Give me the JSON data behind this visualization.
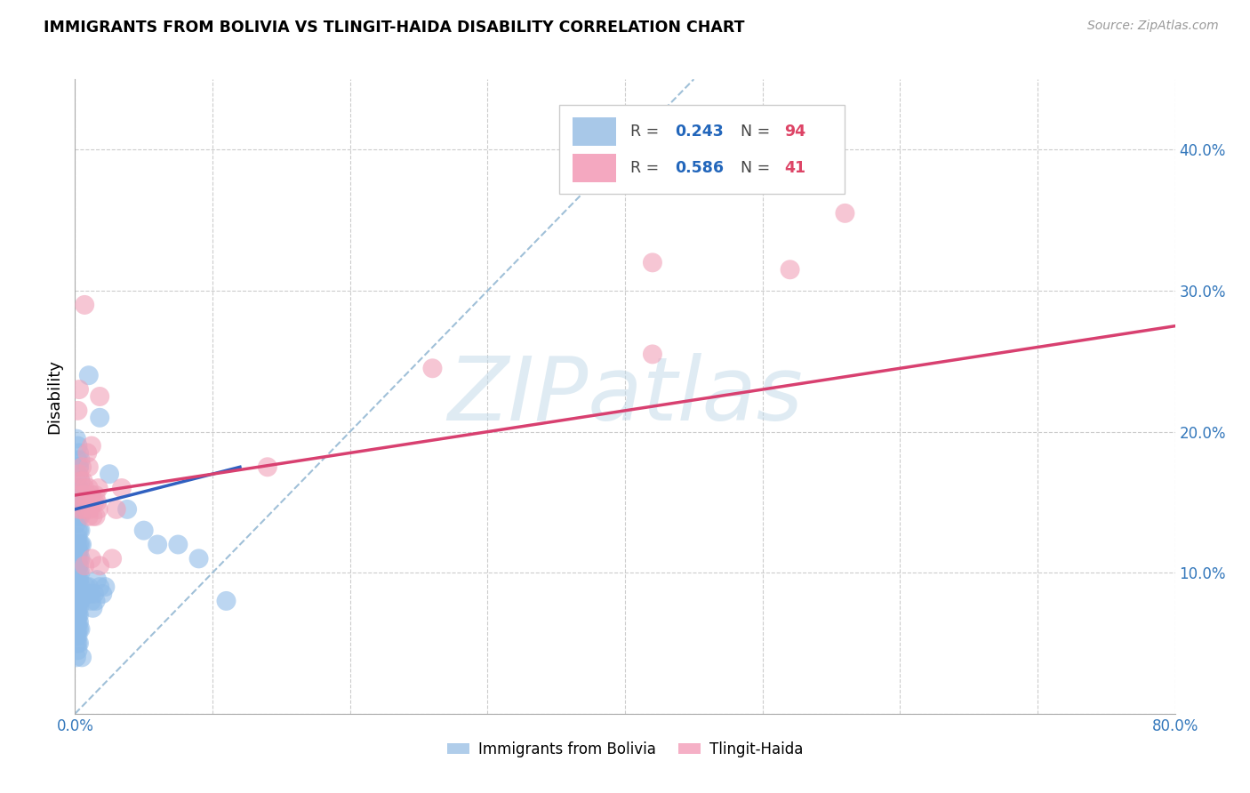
{
  "title": "IMMIGRANTS FROM BOLIVIA VS TLINGIT-HAIDA DISABILITY CORRELATION CHART",
  "source": "Source: ZipAtlas.com",
  "ylabel": "Disability",
  "xlim": [
    0.0,
    0.8
  ],
  "ylim": [
    0.0,
    0.45
  ],
  "xticks": [
    0.0,
    0.1,
    0.2,
    0.3,
    0.4,
    0.5,
    0.6,
    0.7,
    0.8
  ],
  "xticklabels": [
    "0.0%",
    "",
    "",
    "",
    "",
    "",
    "",
    "",
    "80.0%"
  ],
  "yticks": [
    0.0,
    0.1,
    0.2,
    0.3,
    0.4
  ],
  "yticklabels": [
    "",
    "10.0%",
    "20.0%",
    "30.0%",
    "40.0%"
  ],
  "watermark": "ZIPatlas",
  "bolivia_color": "#90bce8",
  "tlingit_color": "#f0a0b8",
  "bolivia_line_color": "#3060c0",
  "tlingit_line_color": "#d84070",
  "diagonal_color": "#a0c0d8",
  "background": "#ffffff",
  "grid_color": "#cccccc",
  "bolivia_points": [
    [
      0.001,
      0.195
    ],
    [
      0.002,
      0.19
    ],
    [
      0.003,
      0.185
    ],
    [
      0.002,
      0.18
    ],
    [
      0.003,
      0.175
    ],
    [
      0.004,
      0.18
    ],
    [
      0.002,
      0.17
    ],
    [
      0.003,
      0.175
    ],
    [
      0.004,
      0.165
    ],
    [
      0.002,
      0.16
    ],
    [
      0.003,
      0.16
    ],
    [
      0.001,
      0.155
    ],
    [
      0.002,
      0.155
    ],
    [
      0.003,
      0.15
    ],
    [
      0.003,
      0.145
    ],
    [
      0.004,
      0.145
    ],
    [
      0.002,
      0.14
    ],
    [
      0.003,
      0.14
    ],
    [
      0.004,
      0.14
    ],
    [
      0.001,
      0.135
    ],
    [
      0.002,
      0.13
    ],
    [
      0.003,
      0.13
    ],
    [
      0.004,
      0.13
    ],
    [
      0.002,
      0.125
    ],
    [
      0.003,
      0.12
    ],
    [
      0.002,
      0.12
    ],
    [
      0.001,
      0.12
    ],
    [
      0.004,
      0.12
    ],
    [
      0.005,
      0.12
    ],
    [
      0.002,
      0.115
    ],
    [
      0.003,
      0.115
    ],
    [
      0.002,
      0.11
    ],
    [
      0.003,
      0.11
    ],
    [
      0.004,
      0.11
    ],
    [
      0.001,
      0.11
    ],
    [
      0.002,
      0.105
    ],
    [
      0.003,
      0.105
    ],
    [
      0.002,
      0.1
    ],
    [
      0.003,
      0.1
    ],
    [
      0.004,
      0.1
    ],
    [
      0.001,
      0.1
    ],
    [
      0.002,
      0.095
    ],
    [
      0.003,
      0.095
    ],
    [
      0.002,
      0.09
    ],
    [
      0.003,
      0.09
    ],
    [
      0.004,
      0.09
    ],
    [
      0.001,
      0.09
    ],
    [
      0.002,
      0.085
    ],
    [
      0.003,
      0.085
    ],
    [
      0.002,
      0.08
    ],
    [
      0.003,
      0.08
    ],
    [
      0.004,
      0.08
    ],
    [
      0.001,
      0.08
    ],
    [
      0.002,
      0.075
    ],
    [
      0.003,
      0.075
    ],
    [
      0.002,
      0.07
    ],
    [
      0.003,
      0.07
    ],
    [
      0.002,
      0.07
    ],
    [
      0.001,
      0.065
    ],
    [
      0.002,
      0.065
    ],
    [
      0.003,
      0.065
    ],
    [
      0.002,
      0.06
    ],
    [
      0.003,
      0.06
    ],
    [
      0.004,
      0.06
    ],
    [
      0.001,
      0.06
    ],
    [
      0.002,
      0.055
    ],
    [
      0.001,
      0.055
    ],
    [
      0.002,
      0.05
    ],
    [
      0.001,
      0.05
    ],
    [
      0.003,
      0.05
    ],
    [
      0.002,
      0.045
    ],
    [
      0.001,
      0.04
    ],
    [
      0.008,
      0.09
    ],
    [
      0.009,
      0.085
    ],
    [
      0.01,
      0.09
    ],
    [
      0.011,
      0.085
    ],
    [
      0.012,
      0.08
    ],
    [
      0.013,
      0.075
    ],
    [
      0.014,
      0.085
    ],
    [
      0.015,
      0.08
    ],
    [
      0.016,
      0.095
    ],
    [
      0.018,
      0.09
    ],
    [
      0.02,
      0.085
    ],
    [
      0.022,
      0.09
    ],
    [
      0.01,
      0.24
    ],
    [
      0.018,
      0.21
    ],
    [
      0.025,
      0.17
    ],
    [
      0.038,
      0.145
    ],
    [
      0.05,
      0.13
    ],
    [
      0.06,
      0.12
    ],
    [
      0.075,
      0.12
    ],
    [
      0.09,
      0.11
    ],
    [
      0.11,
      0.08
    ],
    [
      0.005,
      0.04
    ]
  ],
  "tlingit_points": [
    [
      0.002,
      0.155
    ],
    [
      0.003,
      0.145
    ],
    [
      0.003,
      0.17
    ],
    [
      0.004,
      0.165
    ],
    [
      0.005,
      0.175
    ],
    [
      0.005,
      0.145
    ],
    [
      0.006,
      0.165
    ],
    [
      0.006,
      0.155
    ],
    [
      0.007,
      0.16
    ],
    [
      0.008,
      0.145
    ],
    [
      0.009,
      0.155
    ],
    [
      0.01,
      0.14
    ],
    [
      0.01,
      0.16
    ],
    [
      0.011,
      0.145
    ],
    [
      0.012,
      0.155
    ],
    [
      0.013,
      0.14
    ],
    [
      0.014,
      0.15
    ],
    [
      0.015,
      0.155
    ],
    [
      0.015,
      0.14
    ],
    [
      0.016,
      0.15
    ],
    [
      0.017,
      0.145
    ],
    [
      0.017,
      0.16
    ],
    [
      0.002,
      0.215
    ],
    [
      0.003,
      0.23
    ],
    [
      0.009,
      0.185
    ],
    [
      0.01,
      0.175
    ],
    [
      0.012,
      0.19
    ],
    [
      0.018,
      0.225
    ],
    [
      0.007,
      0.29
    ],
    [
      0.007,
      0.105
    ],
    [
      0.012,
      0.11
    ],
    [
      0.018,
      0.105
    ],
    [
      0.027,
      0.11
    ],
    [
      0.03,
      0.145
    ],
    [
      0.034,
      0.16
    ],
    [
      0.14,
      0.175
    ],
    [
      0.26,
      0.245
    ],
    [
      0.42,
      0.255
    ],
    [
      0.42,
      0.32
    ],
    [
      0.52,
      0.315
    ],
    [
      0.56,
      0.355
    ]
  ],
  "bolivia_line": {
    "x0": 0.0,
    "x1": 0.12,
    "y0": 0.145,
    "y1": 0.175
  },
  "tlingit_line": {
    "x0": 0.0,
    "x1": 0.8,
    "y0": 0.155,
    "y1": 0.275
  },
  "diagonal_line": {
    "x0": 0.0,
    "x1": 0.45,
    "y0": 0.0,
    "y1": 0.45
  }
}
